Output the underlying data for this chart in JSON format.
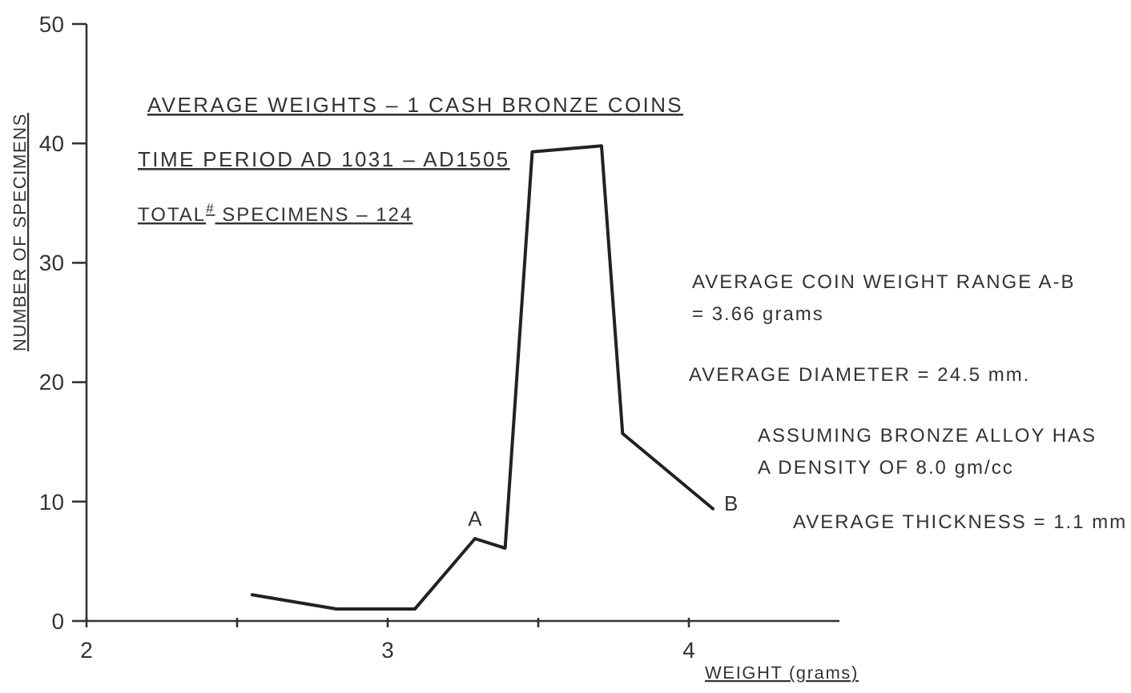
{
  "chart_data": {
    "type": "line",
    "title": "AVERAGE WEIGHTS – 1 CASH BRONZE COINS",
    "subtitle": "TIME PERIOD AD 1031 – AD1505",
    "xlabel": "WEIGHT (grams)",
    "ylabel": "NUMBER OF SPECIMENS",
    "x": [
      2.55,
      2.83,
      3.09,
      3.29,
      3.39,
      3.48,
      3.71,
      3.78,
      4.08
    ],
    "values": [
      2.2,
      1,
      1,
      6.9,
      6.1,
      39.3,
      39.8,
      15.7,
      9.4
    ],
    "color": "#222222",
    "xlim": [
      2,
      4.5
    ],
    "xticks": [
      2,
      {
        "value": 2.5,
        "label": null
      },
      3,
      {
        "value": 3.5,
        "label": null
      },
      4
    ],
    "ylim": [
      0,
      50
    ],
    "yticks": [
      0,
      10,
      20,
      30,
      40,
      50
    ],
    "grid": false,
    "annotations": [
      "TOTAL$^{#}$ SPECIMENS – 124",
      "AVERAGE COIN WEIGHT RANGE A-B\n= 3.66 grams",
      "AVERAGE DIAMETER = 24.5 mm.",
      "ASSUMING BRONZE ALLOY HAS\nA DENSITY OF 8.0 gm/cc",
      "AVERAGE THICKNESS = 1.1 mm",
      {
        "text": "A",
        "x": 3.29,
        "y": 6.9
      },
      {
        "text": "B",
        "x": 4.08,
        "y": 9.4
      }
    ]
  }
}
